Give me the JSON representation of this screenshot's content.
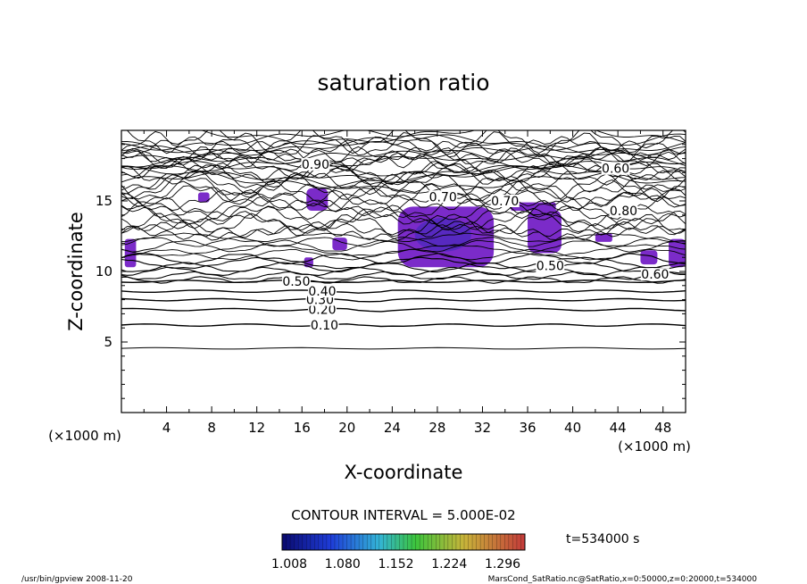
{
  "chart_data": {
    "type": "heatmap",
    "title": "saturation ratio",
    "xlabel": "X-coordinate",
    "ylabel": "Z-coordinate",
    "x_unit_left": "(×1000 m)",
    "x_unit_right": "(×1000 m)",
    "xlim": [
      0,
      50
    ],
    "ylim": [
      0,
      20
    ],
    "x_ticks": [
      "4",
      "8",
      "12",
      "16",
      "20",
      "24",
      "28",
      "32",
      "36",
      "40",
      "44",
      "48"
    ],
    "y_ticks": [
      "5",
      "10",
      "15"
    ],
    "contour_interval_text": "CONTOUR INTERVAL = 5.000E-02",
    "contour_labels": [
      "0.10",
      "0.20",
      "0.30",
      "0.40",
      "0.50",
      "0.60",
      "0.70",
      "0.80",
      "0.90"
    ],
    "shade_min": 1.0,
    "colorbar_ticks": [
      "1.008",
      "1.080",
      "1.152",
      "1.224",
      "1.296"
    ],
    "time_label": "t=534000 s",
    "footer_left": "/usr/bin/gpview   2008-11-20",
    "footer_right": "MarsCond_SatRatio.nc@SatRatio,x=0:50000,z=0:20000,t=534000",
    "shaded_regions": [
      {
        "x": [
          0.3,
          1.3
        ],
        "z": [
          10.3,
          12.3
        ]
      },
      {
        "x": [
          6.8,
          7.8
        ],
        "z": [
          14.9,
          15.6
        ]
      },
      {
        "x": [
          16.4,
          18.3
        ],
        "z": [
          14.3,
          15.9
        ]
      },
      {
        "x": [
          16.2,
          17.0
        ],
        "z": [
          10.3,
          11.0
        ]
      },
      {
        "x": [
          18.7,
          20.0
        ],
        "z": [
          11.5,
          12.4
        ]
      },
      {
        "x": [
          24.5,
          33.0
        ],
        "z": [
          10.3,
          14.6
        ]
      },
      {
        "x": [
          36.0,
          39.0
        ],
        "z": [
          11.3,
          14.4
        ]
      },
      {
        "x": [
          34.5,
          38.5
        ],
        "z": [
          14.3,
          14.9
        ]
      },
      {
        "x": [
          42.0,
          43.5
        ],
        "z": [
          12.1,
          12.7
        ]
      },
      {
        "x": [
          46.0,
          47.5
        ],
        "z": [
          10.5,
          11.5
        ]
      },
      {
        "x": [
          48.5,
          50.0
        ],
        "z": [
          10.3,
          12.3
        ]
      }
    ],
    "contour_levels_z": [
      {
        "level": "0.10",
        "z": 6.2
      },
      {
        "level": "0.20",
        "z": 7.3
      },
      {
        "level": "0.30",
        "z": 8.0
      },
      {
        "level": "0.40",
        "z": 8.6
      },
      {
        "level": "0.50",
        "z": 9.3
      }
    ],
    "colors": {
      "shade": "#7b2bc9",
      "shade_dark": "#3a28b8",
      "line": "#000000"
    }
  }
}
